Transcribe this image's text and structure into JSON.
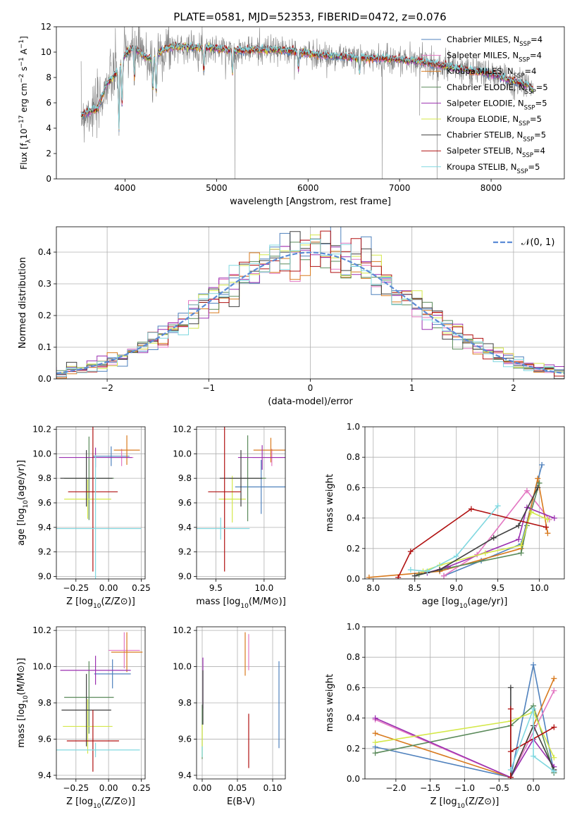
{
  "figure": {
    "title": "PLATE=0581, MJD=52353, FIBERID=0472, z=0.076"
  },
  "models": [
    {
      "label": "Chabrier MILES, N_{SSP}=4",
      "text": "Chabrier MILES, N",
      "sub": "SSP",
      "tail": "=4",
      "color": "#4f81bd"
    },
    {
      "label": "Salpeter MILES, N_{SSP}=4",
      "text": "Salpeter MILES, N",
      "sub": "SSP",
      "tail": "=4",
      "color": "#e377c2"
    },
    {
      "label": "Kroupa MILES, N_{SSP}=4",
      "text": "Kroupa MILES, N",
      "sub": "SSP",
      "tail": "=4",
      "color": "#d87a1e"
    },
    {
      "label": "Chabrier ELODIE, N_{SSP}=5",
      "text": "Chabrier ELODIE, N",
      "sub": "SSP",
      "tail": "=5",
      "color": "#5a8a5a"
    },
    {
      "label": "Salpeter ELODIE, N_{SSP}=5",
      "text": "Salpeter ELODIE, N",
      "sub": "SSP",
      "tail": "=5",
      "color": "#9b30b0"
    },
    {
      "label": "Kroupa ELODIE, N_{SSP}=5",
      "text": "Kroupa ELODIE, N",
      "sub": "SSP",
      "tail": "=5",
      "color": "#d4e84a"
    },
    {
      "label": "Chabrier STELIB, N_{SSP}=5",
      "text": "Chabrier STELIB, N",
      "sub": "SSP",
      "tail": "=5",
      "color": "#404040"
    },
    {
      "label": "Salpeter STELIB, N_{SSP}=4",
      "text": "Salpeter STELIB, N",
      "sub": "SSP",
      "tail": "=4",
      "color": "#b01010"
    },
    {
      "label": "Kroupa STELIB, N_{SSP}=5",
      "text": "Kroupa STELIB, N",
      "sub": "SSP",
      "tail": "=5",
      "color": "#80d8e0"
    }
  ],
  "chart_data": [
    {
      "id": "spectrum",
      "type": "line",
      "xlabel": "wavelength [Angstrom, rest frame]",
      "ylabel": "Flux [f_λ10^{-17} erg cm^{-2} s^{-1} A^{-1}]",
      "ylabel_parts": {
        "a": "Flux [f",
        "b": "λ",
        "c": "10",
        "d": "−17",
        "e": " erg cm",
        "f": "−2",
        "g": " s",
        "h": "−1",
        "i": " A",
        "j": "−1",
        "k": "]"
      },
      "xlim": [
        3250,
        8800
      ],
      "ylim": [
        0,
        12
      ],
      "xticks": [
        4000,
        5000,
        6000,
        7000,
        8000
      ],
      "yticks": [
        0,
        2,
        4,
        6,
        8,
        10,
        12
      ],
      "grid": false,
      "legend": "top-right",
      "data_color": "#808080",
      "spectrum_nodes": [
        {
          "x": 3520,
          "y": 5.0
        },
        {
          "x": 3600,
          "y": 5.3
        },
        {
          "x": 3700,
          "y": 5.5
        },
        {
          "x": 3800,
          "y": 7.5
        },
        {
          "x": 3900,
          "y": 8.3
        },
        {
          "x": 4000,
          "y": 9.8
        },
        {
          "x": 4100,
          "y": 10.4
        },
        {
          "x": 4200,
          "y": 9.7
        },
        {
          "x": 4300,
          "y": 9.4
        },
        {
          "x": 4400,
          "y": 10.1
        },
        {
          "x": 4500,
          "y": 10.4
        },
        {
          "x": 4700,
          "y": 10.4
        },
        {
          "x": 5000,
          "y": 10.3
        },
        {
          "x": 5200,
          "y": 10.1
        },
        {
          "x": 5500,
          "y": 10.2
        },
        {
          "x": 5800,
          "y": 10.1
        },
        {
          "x": 6000,
          "y": 9.9
        },
        {
          "x": 6200,
          "y": 9.7
        },
        {
          "x": 6500,
          "y": 9.6
        },
        {
          "x": 6800,
          "y": 9.5
        },
        {
          "x": 7000,
          "y": 9.4
        },
        {
          "x": 7200,
          "y": 9.3
        },
        {
          "x": 7500,
          "y": 8.9
        },
        {
          "x": 7800,
          "y": 8.5
        },
        {
          "x": 8000,
          "y": 8.3
        },
        {
          "x": 8200,
          "y": 7.8
        },
        {
          "x": 8400,
          "y": 7.4
        },
        {
          "x": 8460,
          "y": 7.0
        }
      ],
      "absorption_lines": [
        {
          "x": 3934,
          "depth": 4.0
        },
        {
          "x": 3968,
          "depth": 3.0
        },
        {
          "x": 4102,
          "depth": 2.0
        },
        {
          "x": 4304,
          "depth": 2.0
        },
        {
          "x": 4340,
          "depth": 2.5
        },
        {
          "x": 4861,
          "depth": 1.5
        },
        {
          "x": 5175,
          "depth": 1.5
        },
        {
          "x": 5894,
          "depth": 1.2
        },
        {
          "x": 6563,
          "depth": 1.0
        }
      ],
      "spikes": [
        {
          "x": 5200,
          "y_min": 0.0
        },
        {
          "x": 6810,
          "y_min": 0.0
        },
        {
          "x": 7410,
          "y_min": 0.0
        },
        {
          "x": 7220,
          "y_min": 5.0
        }
      ]
    },
    {
      "id": "residuals",
      "type": "step",
      "xlabel": "(data-model)/error",
      "ylabel": "Normed distribution",
      "xlim": [
        -2.5,
        2.5
      ],
      "ylim": [
        0,
        0.48
      ],
      "xticks": [
        -2,
        -1,
        0,
        1,
        2
      ],
      "yticks": [
        0.0,
        0.1,
        0.2,
        0.3,
        0.4
      ],
      "grid": true,
      "legend": "top-right",
      "legend_label": "𝒩(0, 1)",
      "reference": {
        "name": "𝒩(0, 1)",
        "type": "gaussian",
        "mu": 0,
        "sigma": 1,
        "color": "#5b8bd6"
      },
      "bin_width": 0.1
    },
    {
      "id": "age-vs-Z",
      "type": "errorbar",
      "xlabel": "Z [log₁₀(Z/Z⊙)]",
      "ylabel": "age  [log₁₀(age/yr)]",
      "xlim": [
        -0.4,
        0.28
      ],
      "ylim": [
        8.98,
        10.22
      ],
      "xticks": [
        -0.25,
        0,
        0.25
      ],
      "xticklabels": [
        "−0.25",
        "0.00",
        "0.25"
      ],
      "yticks": [
        9.0,
        9.2,
        9.4,
        9.6,
        9.8,
        10.0,
        10.2
      ],
      "grid": true,
      "points": [
        {
          "x": 0.02,
          "xerr": 0.14,
          "y": 9.98,
          "yerr": 0.08
        },
        {
          "x": 0.1,
          "xerr": 0.09,
          "y": 9.97,
          "yerr": 0.07
        },
        {
          "x": 0.14,
          "xerr": 0.1,
          "y": 10.03,
          "yerr": 0.12
        },
        {
          "x": -0.15,
          "xerr": 0.19,
          "y": 9.8,
          "yerr": 0.34
        },
        {
          "x": -0.1,
          "xerr": 0.28,
          "y": 9.97,
          "yerr": 0.08
        },
        {
          "x": -0.16,
          "xerr": 0.18,
          "y": 9.63,
          "yerr": 0.16
        },
        {
          "x": -0.17,
          "xerr": 0.2,
          "y": 9.8,
          "yerr": 0.23
        },
        {
          "x": -0.12,
          "xerr": 0.19,
          "y": 9.69,
          "yerr": 0.65
        },
        {
          "x": -0.1,
          "xerr": 0.35,
          "y": 9.39,
          "yerr": 0.6
        }
      ]
    },
    {
      "id": "age-vs-mass",
      "type": "errorbar",
      "xlabel": "mass [log₁₀(M/M⊙)]",
      "ylabel": "",
      "xlim": [
        9.3,
        10.22
      ],
      "ylim": [
        8.98,
        10.22
      ],
      "xticks": [
        9.5,
        10.0
      ],
      "xticklabels": [
        "9.5",
        "10.0"
      ],
      "yticks": [
        9.0,
        9.2,
        9.4,
        9.6,
        9.8,
        10.0,
        10.2
      ],
      "grid": true,
      "points": [
        {
          "x": 9.97,
          "xerr": 0.27,
          "y": 9.73,
          "yerr": 0.22
        },
        {
          "x": 10.08,
          "xerr": 0.2,
          "y": 9.97,
          "yerr": 0.07
        },
        {
          "x": 10.07,
          "xerr": 0.18,
          "y": 10.03,
          "yerr": 0.1
        },
        {
          "x": 9.83,
          "xerr": 0.19,
          "y": 9.8,
          "yerr": 0.35
        },
        {
          "x": 9.98,
          "xerr": 0.25,
          "y": 9.97,
          "yerr": 0.1
        },
        {
          "x": 9.67,
          "xerr": 0.14,
          "y": 9.63,
          "yerr": 0.19
        },
        {
          "x": 9.76,
          "xerr": 0.22,
          "y": 9.8,
          "yerr": 0.23
        },
        {
          "x": 9.59,
          "xerr": 0.17,
          "y": 9.69,
          "yerr": 0.65
        },
        {
          "x": 9.55,
          "xerr": 0.3,
          "y": 9.39,
          "yerr": 0.09
        }
      ]
    },
    {
      "id": "massweight-vs-age",
      "type": "line",
      "xlabel": "age  [log₁₀(age/yr)]",
      "ylabel": "mass weight",
      "xlim": [
        7.9,
        10.3
      ],
      "ylim": [
        0,
        1.0
      ],
      "xticks": [
        8.0,
        8.5,
        9.0,
        9.5,
        10.0
      ],
      "xticklabels": [
        "8.0",
        "8.5",
        "9.0",
        "9.5",
        "10.0"
      ],
      "yticks": [
        0.0,
        0.2,
        0.4,
        0.6,
        0.8,
        1.0
      ],
      "grid": true,
      "series": [
        {
          "points": [
            [
              8.85,
              0.02
            ],
            [
              9.3,
              0.12
            ],
            [
              9.78,
              0.23
            ],
            [
              10.03,
              0.75
            ]
          ]
        },
        {
          "points": [
            [
              8.85,
              0.02
            ],
            [
              9.25,
              0.16
            ],
            [
              9.85,
              0.58
            ],
            [
              10.12,
              0.39
            ]
          ]
        },
        {
          "points": [
            [
              7.95,
              0.01
            ],
            [
              8.8,
              0.05
            ],
            [
              9.78,
              0.2
            ],
            [
              9.98,
              0.66
            ],
            [
              10.1,
              0.3
            ]
          ]
        },
        {
          "points": [
            [
              8.55,
              0.03
            ],
            [
              8.8,
              0.06
            ],
            [
              9.78,
              0.17
            ],
            [
              9.85,
              0.35
            ],
            [
              10.0,
              0.63
            ]
          ]
        },
        {
          "points": [
            [
              8.65,
              0.04
            ],
            [
              8.9,
              0.08
            ],
            [
              9.75,
              0.26
            ],
            [
              9.85,
              0.47
            ],
            [
              10.18,
              0.4
            ]
          ]
        },
        {
          "points": [
            [
              8.6,
              0.05
            ],
            [
              8.8,
              0.09
            ],
            [
              9.35,
              0.17
            ],
            [
              9.78,
              0.22
            ],
            [
              9.9,
              0.44
            ],
            [
              10.1,
              0.39
            ]
          ]
        },
        {
          "points": [
            [
              8.5,
              0.02
            ],
            [
              8.8,
              0.06
            ],
            [
              9.45,
              0.27
            ],
            [
              9.75,
              0.35
            ],
            [
              9.98,
              0.6
            ]
          ]
        },
        {
          "points": [
            [
              8.3,
              0.01
            ],
            [
              8.45,
              0.18
            ],
            [
              9.18,
              0.46
            ],
            [
              10.08,
              0.34
            ]
          ]
        },
        {
          "points": [
            [
              8.45,
              0.06
            ],
            [
              8.65,
              0.05
            ],
            [
              9.0,
              0.15
            ],
            [
              9.5,
              0.48
            ]
          ]
        }
      ]
    },
    {
      "id": "mass-vs-Z",
      "type": "errorbar",
      "xlabel": "Z [log₁₀(Z/Z⊙)]",
      "ylabel": "mass [log₁₀(M/M⊙)]",
      "xlim": [
        -0.4,
        0.28
      ],
      "ylim": [
        9.38,
        10.22
      ],
      "xticks": [
        -0.25,
        0,
        0.25
      ],
      "xticklabels": [
        "−0.25",
        "0.00",
        "0.25"
      ],
      "yticks": [
        9.4,
        9.6,
        9.8,
        10.0,
        10.2
      ],
      "grid": true,
      "points": [
        {
          "x": 0.03,
          "xerr": 0.14,
          "y": 9.96,
          "yerr": 0.08
        },
        {
          "x": 0.12,
          "xerr": 0.12,
          "y": 10.09,
          "yerr": 0.1
        },
        {
          "x": 0.14,
          "xerr": 0.12,
          "y": 10.08,
          "yerr": 0.11
        },
        {
          "x": -0.15,
          "xerr": 0.19,
          "y": 9.83,
          "yerr": 0.2
        },
        {
          "x": -0.1,
          "xerr": 0.27,
          "y": 9.98,
          "yerr": 0.08
        },
        {
          "x": -0.16,
          "xerr": 0.19,
          "y": 9.67,
          "yerr": 0.15
        },
        {
          "x": -0.17,
          "xerr": 0.19,
          "y": 9.76,
          "yerr": 0.2
        },
        {
          "x": -0.12,
          "xerr": 0.2,
          "y": 9.59,
          "yerr": 0.17
        },
        {
          "x": -0.1,
          "xerr": 0.34,
          "y": 9.54,
          "yerr": 0.04
        }
      ]
    },
    {
      "id": "mass-vs-EBV",
      "type": "errorbar",
      "xlabel": "E(B-V)",
      "ylabel": "",
      "xlim": [
        -0.008,
        0.118
      ],
      "ylim": [
        9.38,
        10.22
      ],
      "xticks": [
        0.0,
        0.05,
        0.1
      ],
      "xticklabels": [
        "0.00",
        "0.05",
        "0.10"
      ],
      "yticks": [
        9.4,
        9.6,
        9.8,
        10.0,
        10.2
      ],
      "grid": true,
      "points": [
        {
          "x": 0.109,
          "y": 9.79,
          "yerr": 0.24
        },
        {
          "x": 0.066,
          "y": 10.08,
          "yerr": 0.1
        },
        {
          "x": 0.061,
          "y": 10.07,
          "yerr": 0.12
        },
        {
          "x": 0.0,
          "y": 9.64,
          "yerr": 0.15
        },
        {
          "x": 0.001,
          "y": 9.91,
          "yerr": 0.14
        },
        {
          "x": 0.0,
          "y": 9.59,
          "yerr": 0.09
        },
        {
          "x": 0.001,
          "y": 9.83,
          "yerr": 0.15
        },
        {
          "x": 0.066,
          "y": 9.59,
          "yerr": 0.15
        },
        {
          "x": 0.0,
          "y": 9.53,
          "yerr": 0.03
        }
      ]
    },
    {
      "id": "massweight-vs-Z",
      "type": "line",
      "xlabel": "Z [log₁₀(Z/Z⊙)]",
      "ylabel": "mass weight",
      "xlim": [
        -2.45,
        0.45
      ],
      "ylim": [
        0,
        1.0
      ],
      "xticks": [
        -2.0,
        -1.5,
        -1.0,
        -0.5,
        0.0
      ],
      "xticklabels": [
        "−2.0",
        "−1.5",
        "−1.0",
        "−0.5",
        "0.0"
      ],
      "yticks": [
        0.0,
        0.2,
        0.4,
        0.6,
        0.8,
        1.0
      ],
      "grid": true,
      "series": [
        {
          "points": [
            [
              -2.3,
              0.21
            ],
            [
              -0.33,
              0.01
            ],
            [
              0.0,
              0.75
            ],
            [
              0.3,
              0.04
            ]
          ]
        },
        {
          "points": [
            [
              -2.3,
              0.39
            ],
            [
              -0.33,
              0.01
            ],
            [
              0.3,
              0.58
            ]
          ]
        },
        {
          "points": [
            [
              -2.3,
              0.3
            ],
            [
              -0.33,
              0.01
            ],
            [
              0.3,
              0.66
            ]
          ]
        },
        {
          "points": [
            [
              -2.3,
              0.17
            ],
            [
              -0.33,
              0.35
            ],
            [
              0.0,
              0.48
            ],
            [
              0.3,
              0.04
            ]
          ]
        },
        {
          "points": [
            [
              -2.3,
              0.4
            ],
            [
              -0.33,
              0.01
            ],
            [
              0.0,
              0.26
            ],
            [
              0.3,
              0.08
            ]
          ]
        },
        {
          "points": [
            [
              -2.3,
              0.24
            ],
            [
              -0.33,
              0.38
            ],
            [
              0.0,
              0.44
            ],
            [
              0.3,
              0.14
            ]
          ]
        },
        {
          "points": [
            [
              -0.33,
              0.6
            ],
            [
              -0.33,
              0.01
            ],
            [
              0.0,
              0.35
            ],
            [
              0.3,
              0.06
            ]
          ]
        },
        {
          "points": [
            [
              -0.33,
              0.46
            ],
            [
              -0.33,
              0.01
            ],
            [
              -0.33,
              0.18
            ],
            [
              0.3,
              0.34
            ]
          ]
        },
        {
          "points": [
            [
              -0.33,
              0.06
            ],
            [
              0.0,
              0.46
            ],
            [
              0.0,
              0.15
            ],
            [
              0.3,
              0.05
            ]
          ]
        }
      ]
    }
  ]
}
